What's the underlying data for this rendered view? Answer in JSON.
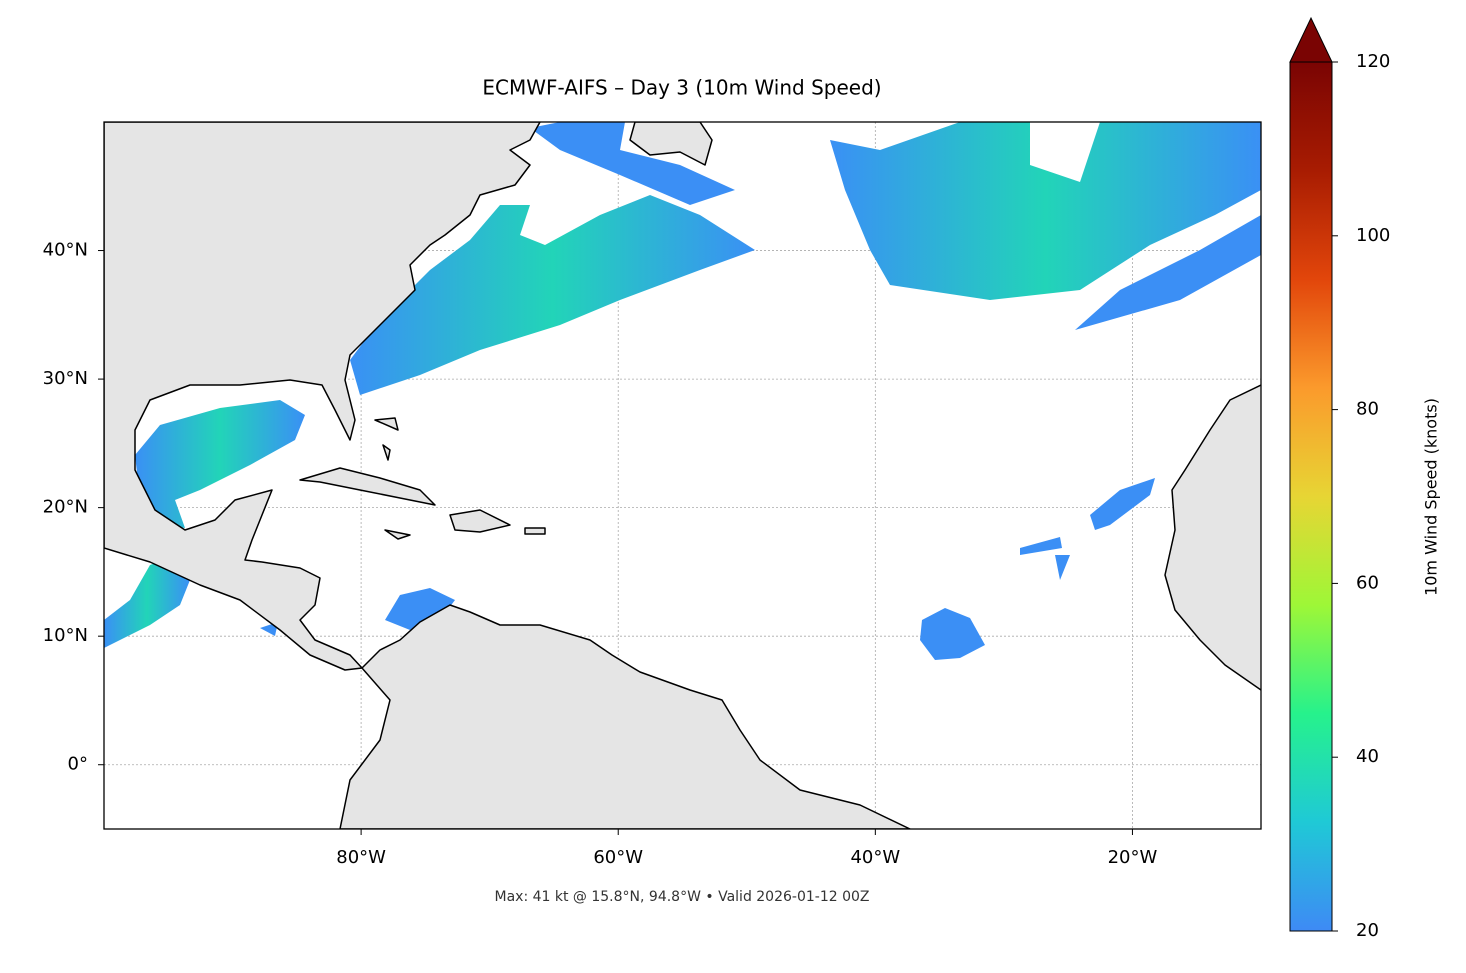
{
  "chart_data": {
    "type": "map",
    "title": "ECMWF-AIFS – Day 3 (10m Wind Speed)",
    "xlim": [
      -100,
      -10
    ],
    "ylim": [
      -5,
      50
    ],
    "xticks": [
      {
        "value": -80,
        "label": "80°W"
      },
      {
        "value": -60,
        "label": "60°W"
      },
      {
        "value": -40,
        "label": "40°W"
      },
      {
        "value": -20,
        "label": "20°W"
      }
    ],
    "yticks": [
      {
        "value": 0,
        "label": "0°"
      },
      {
        "value": 10,
        "label": "10°N"
      },
      {
        "value": 20,
        "label": "20°N"
      },
      {
        "value": 30,
        "label": "30°N"
      },
      {
        "value": 40,
        "label": "40°N"
      }
    ],
    "grid": true,
    "colorbar": {
      "label": "10m Wind Speed (knots)",
      "lim": [
        20,
        120
      ],
      "ticks": [
        20,
        40,
        60,
        80,
        100,
        120
      ],
      "extend": "max",
      "colors": [
        "#3e8af5",
        "#1fc9d6",
        "#26f28c",
        "#9ef737",
        "#e7d534",
        "#fb9a2c",
        "#e2460b",
        "#a81c02",
        "#7a0403"
      ]
    },
    "caption": "Max: 41 kt @ 15.8°N, 94.8°W • Valid 2026-01-12 00Z"
  }
}
